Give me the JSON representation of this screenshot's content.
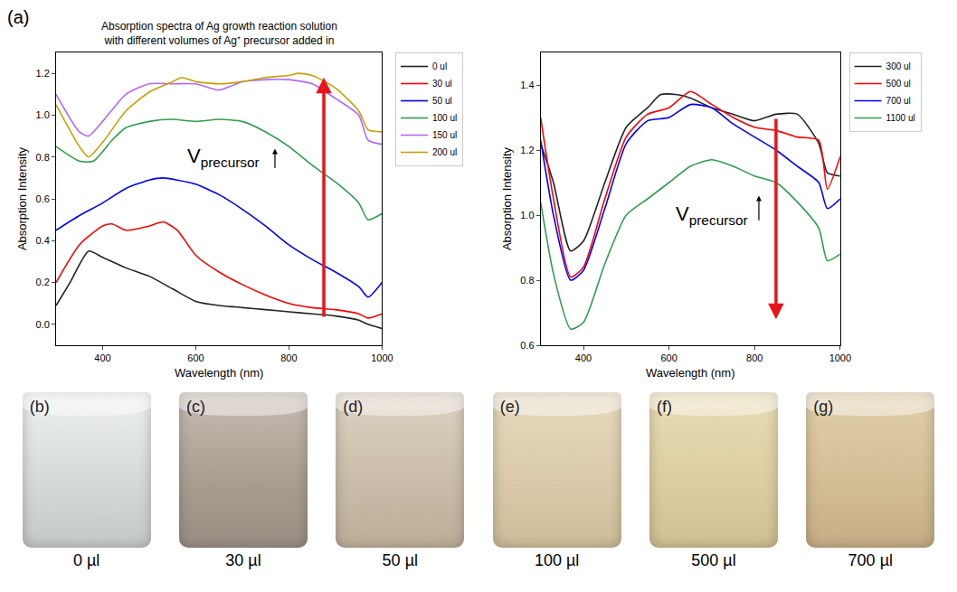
{
  "figure_label": "(a)",
  "chart_data": [
    {
      "type": "line",
      "title": "Absorption spectra of Ag growth reaction solution with different volumes of Ag⁺ precursor added in",
      "x_label": "Wavelength (nm)",
      "y_label": "Absorption Intensity",
      "xlim": [
        300,
        1000
      ],
      "ylim": [
        -0.1,
        1.3
      ],
      "xticks": [
        400,
        600,
        800,
        1000
      ],
      "yticks": [
        {
          "value": 0,
          "label": "0.0"
        },
        0.2,
        0.4,
        0.6,
        0.8,
        {
          "value": 1,
          "label": "1.0"
        },
        1.2
      ],
      "grid": false,
      "legend": "right",
      "annotations": [
        {
          "text": "V",
          "subscript": "precursor"
        }
      ],
      "series": [
        {
          "name": "0 ul",
          "color": "#222222",
          "x": [
            300,
            330,
            370,
            400,
            450,
            500,
            550,
            600,
            650,
            700,
            750,
            800,
            850,
            900,
            950,
            970,
            1000
          ],
          "values": [
            0.09,
            0.2,
            0.35,
            0.32,
            0.27,
            0.23,
            0.17,
            0.11,
            0.09,
            0.08,
            0.07,
            0.06,
            0.05,
            0.04,
            0.02,
            0.0,
            -0.02
          ]
        },
        {
          "name": "30 ul",
          "color": "#ff0000",
          "x": [
            300,
            350,
            400,
            420,
            450,
            500,
            530,
            560,
            600,
            650,
            700,
            750,
            800,
            850,
            900,
            950,
            970,
            1000
          ],
          "values": [
            0.2,
            0.38,
            0.47,
            0.48,
            0.45,
            0.47,
            0.49,
            0.45,
            0.33,
            0.25,
            0.19,
            0.14,
            0.1,
            0.08,
            0.07,
            0.05,
            0.03,
            0.05
          ]
        },
        {
          "name": "50 ul",
          "color": "#0000ff",
          "x": [
            300,
            350,
            400,
            450,
            500,
            530,
            560,
            600,
            650,
            700,
            750,
            800,
            850,
            900,
            950,
            970,
            1000
          ],
          "values": [
            0.45,
            0.52,
            0.58,
            0.65,
            0.69,
            0.7,
            0.69,
            0.67,
            0.62,
            0.55,
            0.47,
            0.38,
            0.31,
            0.25,
            0.18,
            0.13,
            0.2
          ]
        },
        {
          "name": "100 ul",
          "color": "#2e9e4e",
          "x": [
            300,
            350,
            380,
            420,
            450,
            500,
            550,
            600,
            650,
            700,
            750,
            800,
            850,
            900,
            950,
            970,
            1000
          ],
          "values": [
            0.85,
            0.78,
            0.78,
            0.88,
            0.94,
            0.97,
            0.98,
            0.97,
            0.98,
            0.97,
            0.92,
            0.85,
            0.76,
            0.68,
            0.58,
            0.5,
            0.53
          ]
        },
        {
          "name": "150 ul",
          "color": "#b266ff",
          "x": [
            300,
            350,
            370,
            400,
            450,
            500,
            550,
            600,
            650,
            700,
            750,
            800,
            850,
            900,
            950,
            970,
            1000
          ],
          "values": [
            1.1,
            0.92,
            0.9,
            0.97,
            1.1,
            1.15,
            1.15,
            1.15,
            1.12,
            1.16,
            1.17,
            1.17,
            1.15,
            1.08,
            1.0,
            0.88,
            0.86
          ]
        },
        {
          "name": "200 ul",
          "color": "#c8a000",
          "x": [
            300,
            350,
            370,
            400,
            450,
            500,
            550,
            570,
            600,
            650,
            700,
            750,
            800,
            820,
            850,
            900,
            950,
            970,
            1000
          ],
          "values": [
            1.05,
            0.85,
            0.8,
            0.87,
            1.02,
            1.11,
            1.16,
            1.18,
            1.16,
            1.15,
            1.16,
            1.18,
            1.19,
            1.2,
            1.19,
            1.13,
            1.02,
            0.93,
            0.92
          ]
        }
      ]
    },
    {
      "type": "line",
      "x_label": "Wavelength (nm)",
      "y_label": "Absorption Intensity",
      "xlim": [
        300,
        1000
      ],
      "ylim": [
        0.6,
        1.5
      ],
      "xticks": [
        400,
        600,
        800,
        1000
      ],
      "yticks": [
        0.6,
        0.8,
        {
          "value": 1,
          "label": "1.0"
        },
        1.2,
        1.4
      ],
      "grid": false,
      "legend": "right",
      "annotations": [
        {
          "text": "V",
          "subscript": "precursor"
        }
      ],
      "series": [
        {
          "name": "300 ul",
          "color": "#222222",
          "x": [
            300,
            330,
            370,
            400,
            450,
            500,
            550,
            580,
            620,
            650,
            700,
            750,
            800,
            850,
            900,
            950,
            970,
            1000
          ],
          "values": [
            1.22,
            1.1,
            0.89,
            0.92,
            1.1,
            1.27,
            1.33,
            1.37,
            1.37,
            1.36,
            1.33,
            1.31,
            1.29,
            1.31,
            1.31,
            1.22,
            1.13,
            1.12
          ]
        },
        {
          "name": "500 ul",
          "color": "#ff0000",
          "x": [
            300,
            330,
            370,
            400,
            450,
            500,
            550,
            600,
            650,
            700,
            750,
            800,
            850,
            900,
            950,
            970,
            1000
          ],
          "values": [
            1.3,
            1.05,
            0.81,
            0.84,
            1.05,
            1.24,
            1.31,
            1.33,
            1.38,
            1.34,
            1.3,
            1.27,
            1.26,
            1.24,
            1.23,
            1.08,
            1.18
          ]
        },
        {
          "name": "700 ul",
          "color": "#0000ff",
          "x": [
            300,
            330,
            370,
            400,
            450,
            500,
            550,
            600,
            650,
            700,
            750,
            800,
            850,
            900,
            950,
            970,
            1000
          ],
          "values": [
            1.23,
            1.0,
            0.8,
            0.83,
            1.02,
            1.22,
            1.29,
            1.3,
            1.34,
            1.33,
            1.28,
            1.24,
            1.2,
            1.15,
            1.1,
            1.02,
            1.05
          ]
        },
        {
          "name": "1100 ul",
          "color": "#2e9e4e",
          "x": [
            300,
            330,
            370,
            400,
            450,
            500,
            550,
            600,
            650,
            700,
            750,
            800,
            850,
            900,
            950,
            970,
            1000
          ],
          "values": [
            1.04,
            0.82,
            0.65,
            0.67,
            0.85,
            1.0,
            1.05,
            1.1,
            1.15,
            1.17,
            1.15,
            1.12,
            1.1,
            1.04,
            0.96,
            0.86,
            0.88
          ]
        }
      ]
    }
  ],
  "photos": [
    {
      "label": "(b)",
      "caption": "0 µl"
    },
    {
      "label": "(c)",
      "caption": "30 µl"
    },
    {
      "label": "(d)",
      "caption": "50 µl"
    },
    {
      "label": "(e)",
      "caption": "100 µl"
    },
    {
      "label": "(f)",
      "caption": "500 µl"
    },
    {
      "label": "(g)",
      "caption": "700 µl"
    }
  ]
}
